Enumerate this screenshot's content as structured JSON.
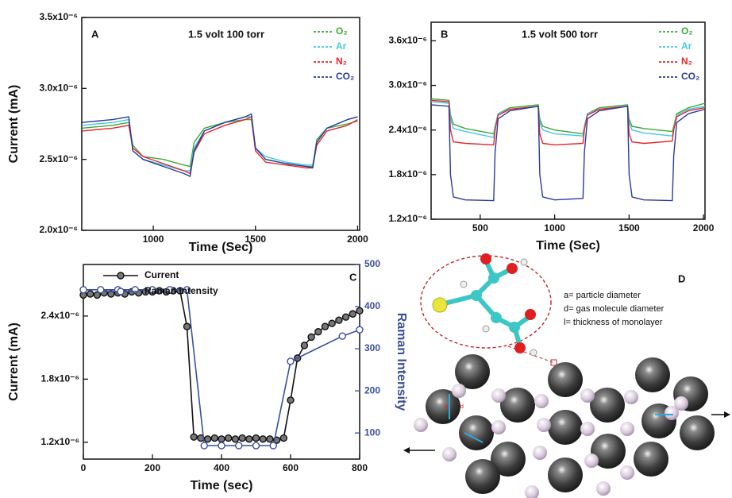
{
  "chart_data": [
    {
      "type": "line",
      "panel_label": "A",
      "title": "1.5 volt 100 torr",
      "xlabel": "Time (Sec)",
      "ylabel": "Current (mA)",
      "xlim": [
        650,
        2010
      ],
      "ylim": [
        2e-06,
        3.5e-06
      ],
      "xticks": [
        1000,
        1500,
        2000
      ],
      "yticks": [
        {
          "value": 2e-06,
          "label": "2.0x10⁻⁶"
        },
        {
          "value": 2.5e-06,
          "label": "2.5x10⁻⁶"
        },
        {
          "value": 3e-06,
          "label": "3.0x10⁻⁶"
        },
        {
          "value": 3.5e-06,
          "label": "3.5x10⁻⁶"
        }
      ],
      "x": [
        650,
        800,
        880,
        900,
        950,
        1050,
        1150,
        1180,
        1200,
        1250,
        1350,
        1450,
        1480,
        1500,
        1550,
        1650,
        1750,
        1780,
        1800,
        1850,
        1950,
        2000
      ],
      "series": [
        {
          "name": "O₂",
          "color": "#3ea83a",
          "values": [
            2.72e-06,
            2.74e-06,
            2.76e-06,
            2.6e-06,
            2.52e-06,
            2.5e-06,
            2.46e-06,
            2.45e-06,
            2.62e-06,
            2.72e-06,
            2.76e-06,
            2.78e-06,
            2.78e-06,
            2.58e-06,
            2.5e-06,
            2.47e-06,
            2.45e-06,
            2.45e-06,
            2.64e-06,
            2.72e-06,
            2.75e-06,
            2.77e-06
          ]
        },
        {
          "name": "Ar",
          "color": "#45c8e0",
          "values": [
            2.74e-06,
            2.76e-06,
            2.78e-06,
            2.56e-06,
            2.5e-06,
            2.46e-06,
            2.42e-06,
            2.42e-06,
            2.58e-06,
            2.7e-06,
            2.76e-06,
            2.8e-06,
            2.8e-06,
            2.58e-06,
            2.52e-06,
            2.48e-06,
            2.46e-06,
            2.46e-06,
            2.62e-06,
            2.72e-06,
            2.78e-06,
            2.8e-06
          ]
        },
        {
          "name": "N₂",
          "color": "#e8262a",
          "values": [
            2.7e-06,
            2.72e-06,
            2.74e-06,
            2.58e-06,
            2.52e-06,
            2.47e-06,
            2.42e-06,
            2.4e-06,
            2.55e-06,
            2.68e-06,
            2.74e-06,
            2.78e-06,
            2.8e-06,
            2.56e-06,
            2.48e-06,
            2.46e-06,
            2.44e-06,
            2.44e-06,
            2.6e-06,
            2.7e-06,
            2.74e-06,
            2.78e-06
          ]
        },
        {
          "name": "CO₂",
          "color": "#2a3b9c",
          "values": [
            2.76e-06,
            2.78e-06,
            2.8e-06,
            2.56e-06,
            2.5e-06,
            2.45e-06,
            2.4e-06,
            2.38e-06,
            2.56e-06,
            2.7e-06,
            2.76e-06,
            2.8e-06,
            2.82e-06,
            2.58e-06,
            2.5e-06,
            2.47e-06,
            2.45e-06,
            2.44e-06,
            2.62e-06,
            2.72e-06,
            2.78e-06,
            2.8e-06
          ]
        }
      ]
    },
    {
      "type": "line",
      "panel_label": "B",
      "title": "1.5 volt 500 torr",
      "xlabel": "Time (Sec)",
      "xlim": [
        170,
        2010
      ],
      "ylim": [
        1.2e-06,
        3.85e-06
      ],
      "xticks": [
        500,
        1000,
        1500,
        2000
      ],
      "yticks": [
        {
          "value": 1.2e-06,
          "label": "1.2x10⁻⁶"
        },
        {
          "value": 1.8e-06,
          "label": "1.8x10⁻⁶"
        },
        {
          "value": 2.4e-06,
          "label": "2.4x10⁻⁶"
        },
        {
          "value": 3e-06,
          "label": "3.0x10⁻⁶"
        },
        {
          "value": 3.6e-06,
          "label": "3.6x10⁻⁶"
        }
      ],
      "x": [
        170,
        290,
        300,
        320,
        400,
        590,
        600,
        620,
        700,
        890,
        900,
        920,
        1000,
        1190,
        1200,
        1220,
        1300,
        1490,
        1500,
        1520,
        1600,
        1790,
        1800,
        1820,
        1900,
        2010
      ],
      "series": [
        {
          "name": "O₂",
          "color": "#3ea83a",
          "values": [
            2.82e-06,
            2.8e-06,
            2.6e-06,
            2.48e-06,
            2.42e-06,
            2.35e-06,
            2.45e-06,
            2.62e-06,
            2.7e-06,
            2.74e-06,
            2.55e-06,
            2.45e-06,
            2.4e-06,
            2.35e-06,
            2.45e-06,
            2.62e-06,
            2.7e-06,
            2.74e-06,
            2.55e-06,
            2.45e-06,
            2.42e-06,
            2.38e-06,
            2.45e-06,
            2.62e-06,
            2.7e-06,
            2.76e-06
          ]
        },
        {
          "name": "Ar",
          "color": "#45c8e0",
          "values": [
            2.78e-06,
            2.76e-06,
            2.55e-06,
            2.42e-06,
            2.38e-06,
            2.3e-06,
            2.45e-06,
            2.62e-06,
            2.68e-06,
            2.72e-06,
            2.5e-06,
            2.4e-06,
            2.35e-06,
            2.32e-06,
            2.45e-06,
            2.62e-06,
            2.68e-06,
            2.72e-06,
            2.5e-06,
            2.4e-06,
            2.36e-06,
            2.32e-06,
            2.42e-06,
            2.6e-06,
            2.68e-06,
            2.72e-06
          ]
        },
        {
          "name": "N₂",
          "color": "#e8262a",
          "values": [
            2.8e-06,
            2.78e-06,
            2.4e-06,
            2.24e-06,
            2.22e-06,
            2.2e-06,
            2.4e-06,
            2.6e-06,
            2.68e-06,
            2.72e-06,
            2.35e-06,
            2.22e-06,
            2.2e-06,
            2.22e-06,
            2.4e-06,
            2.6e-06,
            2.68e-06,
            2.72e-06,
            2.35e-06,
            2.24e-06,
            2.22e-06,
            2.25e-06,
            2.4e-06,
            2.58e-06,
            2.66e-06,
            2.7e-06
          ]
        },
        {
          "name": "CO₂",
          "color": "#2a3b9c",
          "values": [
            2.74e-06,
            2.72e-06,
            1.8e-06,
            1.5e-06,
            1.46e-06,
            1.45e-06,
            2.1e-06,
            2.55e-06,
            2.66e-06,
            2.72e-06,
            1.8e-06,
            1.5e-06,
            1.46e-06,
            1.48e-06,
            2.1e-06,
            2.55e-06,
            2.66e-06,
            2.72e-06,
            1.8e-06,
            1.5e-06,
            1.46e-06,
            1.45e-06,
            2.05e-06,
            2.5e-06,
            2.62e-06,
            2.68e-06
          ]
        }
      ]
    },
    {
      "type": "line",
      "panel_label": "C",
      "xlabel": "Time (sec)",
      "ylabel": "Current (mA)",
      "y2label": "Raman Intensity",
      "xlim": [
        0,
        800
      ],
      "ylim": [
        1.04e-06,
        2.89e-06
      ],
      "y2lim": [
        38,
        500
      ],
      "xticks": [
        0,
        200,
        400,
        600,
        800
      ],
      "yticks": [
        {
          "value": 1.2e-06,
          "label": "1.2x10⁻⁶"
        },
        {
          "value": 1.8e-06,
          "label": "1.8x10⁻⁶"
        },
        {
          "value": 2.4e-06,
          "label": "2.4x10⁻⁶"
        }
      ],
      "y2ticks": [
        100,
        200,
        300,
        400,
        500
      ],
      "x": [
        0,
        20,
        40,
        60,
        80,
        100,
        120,
        140,
        160,
        180,
        200,
        220,
        240,
        260,
        280,
        300,
        320,
        340,
        360,
        380,
        400,
        420,
        440,
        460,
        480,
        500,
        520,
        540,
        560,
        580,
        600,
        620,
        640,
        660,
        680,
        700,
        720,
        740,
        760,
        780,
        800
      ],
      "series": [
        {
          "name": "Current",
          "color": "#111111",
          "values": [
            2.6e-06,
            2.61e-06,
            2.6e-06,
            2.62e-06,
            2.61e-06,
            2.62e-06,
            2.61e-06,
            2.63e-06,
            2.62e-06,
            2.63e-06,
            2.63e-06,
            2.64e-06,
            2.63e-06,
            2.64e-06,
            2.64e-06,
            2.3e-06,
            1.25e-06,
            1.24e-06,
            1.23e-06,
            1.24e-06,
            1.23e-06,
            1.24e-06,
            1.23e-06,
            1.24e-06,
            1.23e-06,
            1.24e-06,
            1.23e-06,
            1.23e-06,
            1.22e-06,
            1.24e-06,
            1.6e-06,
            2e-06,
            2.12e-06,
            2.2e-06,
            2.25e-06,
            2.3e-06,
            2.33e-06,
            2.36e-06,
            2.39e-06,
            2.42e-06,
            2.45e-06
          ]
        },
        {
          "name": "Raman Intensity",
          "color": "#3a4fa0",
          "axis": "y2",
          "x": [
            0,
            50,
            100,
            150,
            200,
            250,
            300,
            350,
            400,
            450,
            500,
            550,
            600,
            750,
            800
          ],
          "values": [
            440,
            440,
            440,
            440,
            440,
            440,
            440,
            70,
            70,
            70,
            70,
            70,
            270,
            330,
            345
          ]
        }
      ]
    }
  ],
  "diagram": {
    "label": "D",
    "legend": [
      "a= particle diameter",
      "d= gas molecule diameter",
      "l= thickness of monolayer"
    ],
    "marks": [
      "a",
      "d",
      "l"
    ]
  }
}
